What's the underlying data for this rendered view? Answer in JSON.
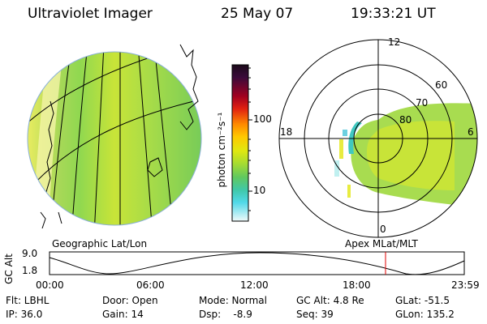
{
  "header": {
    "instrument": "Ultraviolet Imager",
    "date": "25 May 07",
    "time": "19:33:21 UT"
  },
  "colorbar": {
    "unit_label": "photon cm⁻²s⁻¹",
    "ticks": [
      "100",
      "10"
    ],
    "colors_top_to_bottom": [
      "#1b0a1a",
      "#3a0a3a",
      "#6a0a2a",
      "#a00020",
      "#d01010",
      "#ff6a00",
      "#ffb000",
      "#f0e000",
      "#c8e800",
      "#90d830",
      "#60c860",
      "#40c8a0",
      "#40d0e0",
      "#a0e8f0",
      "#e8f8f8"
    ]
  },
  "geo_panel": {
    "caption": "Geographic Lat/Lon"
  },
  "polar_panel": {
    "caption": "Apex MLat/MLT",
    "mlt_labels": [
      "12",
      "18",
      "6",
      "0"
    ],
    "mlat_labels": [
      "60",
      "70",
      "80"
    ]
  },
  "altitude_plot": {
    "axis_label": "GC Alt",
    "y_ticks": [
      "9.0",
      "1.8"
    ],
    "x_ticks": [
      "00:00",
      "06:00",
      "12:00",
      "18:00",
      "23:59"
    ]
  },
  "info": {
    "filter": "Flt: LBHL",
    "ip": "IP: 36.0",
    "door": "Door: Open",
    "gain": "Gain: 14",
    "mode": "Mode: Normal",
    "dsp": "Dsp:    -8.9",
    "gc_alt": "GC Alt: 4.8 Re",
    "seq": "Seq: 39",
    "glat": "GLat: -51.5",
    "glon": "GLon: 135.2"
  }
}
